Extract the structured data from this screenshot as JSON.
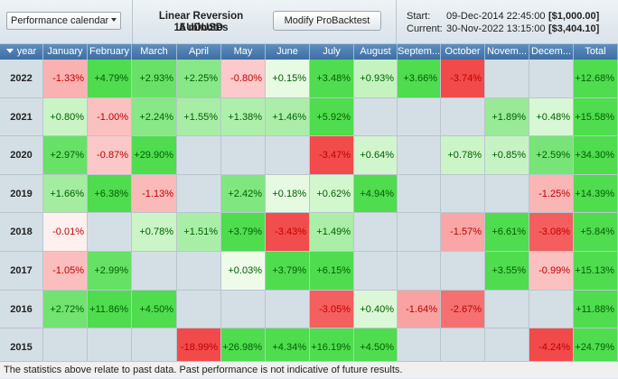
{
  "header": {
    "view_selector": "Performance calendar",
    "strategy_name": "Linear Reversion AUDUSD",
    "timeframe": "15 minutes",
    "modify_button": "Modify ProBacktest",
    "start_label": "Start:",
    "start_date": "09-Dec-2014 22:45:00",
    "start_amount": "[$1,000.00]",
    "current_label": "Current:",
    "current_date": "30-Nov-2022 13:15:00",
    "current_amount": "[$3,404.10]"
  },
  "table": {
    "year_header": "year",
    "columns": [
      "January",
      "February",
      "March",
      "April",
      "May",
      "June",
      "July",
      "August",
      "Septem...",
      "October",
      "Novem...",
      "Decem...",
      "Total"
    ],
    "rows": [
      {
        "year": "2022",
        "values": [
          "-1.33%",
          "+4.79%",
          "+2.93%",
          "+2.25%",
          "-0.80%",
          "+0.15%",
          "+3.48%",
          "+0.93%",
          "+3.66%",
          "-3.74%",
          "",
          "",
          "+12.68%"
        ]
      },
      {
        "year": "2021",
        "values": [
          "+0.80%",
          "-1.00%",
          "+2.24%",
          "+1.55%",
          "+1.38%",
          "+1.46%",
          "+5.92%",
          "",
          "",
          "",
          "+1.89%",
          "+0.48%",
          "+15.58%"
        ]
      },
      {
        "year": "2020",
        "values": [
          "+2.97%",
          "-0.87%",
          "+29.90%",
          "",
          "",
          "",
          "-3.47%",
          "+0.64%",
          "",
          "+0.78%",
          "+0.85%",
          "+2.59%",
          "+34.30%"
        ]
      },
      {
        "year": "2019",
        "values": [
          "+1.66%",
          "+6.38%",
          "-1.13%",
          "",
          "+2.42%",
          "+0.18%",
          "+0.62%",
          "+4.94%",
          "",
          "",
          "",
          "-1.25%",
          "+14.39%"
        ]
      },
      {
        "year": "2018",
        "values": [
          "-0.01%",
          "",
          "+0.78%",
          "+1.51%",
          "+3.79%",
          "-3.43%",
          "+1.49%",
          "",
          "",
          "-1.57%",
          "+6.61%",
          "-3.08%",
          "+5.84%"
        ]
      },
      {
        "year": "2017",
        "values": [
          "-1.05%",
          "+2.99%",
          "",
          "",
          "+0.03%",
          "+3.79%",
          "+6.15%",
          "",
          "",
          "",
          "+3.55%",
          "-0.99%",
          "+15.13%"
        ]
      },
      {
        "year": "2016",
        "values": [
          "+2.72%",
          "+11.86%",
          "+4.50%",
          "",
          "",
          "",
          "-3.05%",
          "+0.40%",
          "-1.64%",
          "-2.67%",
          "",
          "",
          "+11.88%"
        ]
      },
      {
        "year": "2015",
        "values": [
          "",
          "",
          "",
          "-18.99%",
          "+26.98%",
          "+4.34%",
          "+16.19%",
          "+4.50%",
          "",
          "",
          "",
          "-4.24%",
          "+24.79%"
        ]
      }
    ]
  },
  "colors": {
    "header_blue": "#4a7bb0",
    "positive_strong": "#4fdc4f",
    "positive_weak": "#eefbe9",
    "negative_strong": "#f24a4a",
    "negative_weak": "#fff0f0",
    "empty": "#d4dee5"
  },
  "footer": "The statistics above relate to past data. Past performance is not indicative of future results."
}
